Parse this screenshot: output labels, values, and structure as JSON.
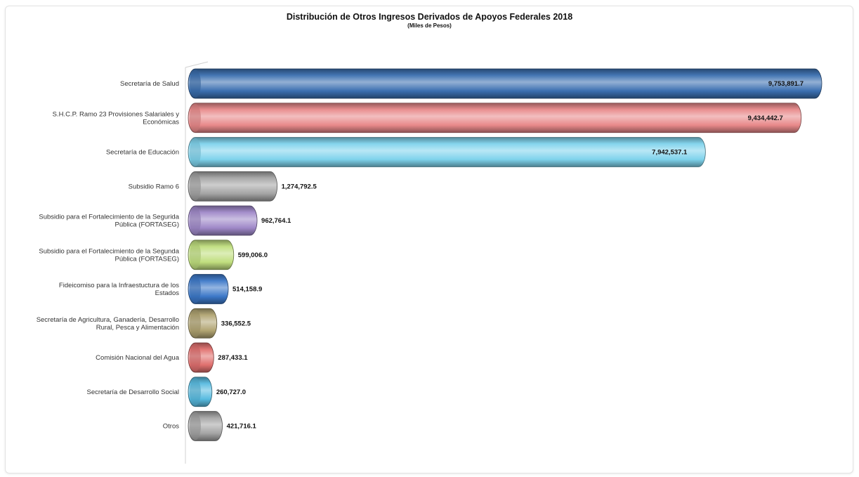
{
  "chart_data": {
    "type": "bar",
    "orientation": "horizontal",
    "title": "Distribución de Otros Ingresos Derivados de Apoyos Federales 2018",
    "subtitle": "(Miles de Pesos)",
    "xlabel": "",
    "ylabel": "",
    "grid": false,
    "legend": "none",
    "categories": [
      [
        "Secretaría de Salud"
      ],
      [
        "S.H.C.P. Ramo 23 Provisiones Salariales y",
        "Económicas"
      ],
      [
        "Secretaría de Educación"
      ],
      [
        "Subsidio Ramo 6"
      ],
      [
        "Subsidio para el Fortalecimiento de la Segurida",
        "Pública (FORTASEG)"
      ],
      [
        "Subsidio para el Fortalecimiento de la Segunda",
        "Pública (FORTASEG)"
      ],
      [
        "Fideicomiso para la Infraestuctura de los",
        "Estados"
      ],
      [
        "Secretaría de Agricultura, Ganadería, Desarrollo",
        "Rural, Pesca y Alimentación"
      ],
      [
        "Comisión Nacional del Agua"
      ],
      [
        "Secretaría de Desarrollo Social"
      ],
      [
        "Otros"
      ]
    ],
    "values": [
      9753891.7,
      9434442.7,
      7942537.1,
      1274792.5,
      962764.1,
      599006.0,
      514158.9,
      336552.5,
      287433.1,
      260727.0,
      421716.1
    ],
    "value_labels": [
      "9,753,891.7",
      "9,434,442.7",
      "7,942,537.1",
      "1,274,792.5",
      "962,764.1",
      "599,006.0",
      "514,158.9",
      "336,552.5",
      "287,433.1",
      "260,727.0",
      "421,716.1"
    ],
    "xlim": [
      0,
      10000000
    ],
    "colors": [
      "#3b6fb0",
      "#e8898a",
      "#7fd3ec",
      "#a4a4a4",
      "#9f88c8",
      "#c0de7e",
      "#3c78c8",
      "#b1a472",
      "#e0706e",
      "#58bbe0",
      "#a4a4a4"
    ]
  }
}
